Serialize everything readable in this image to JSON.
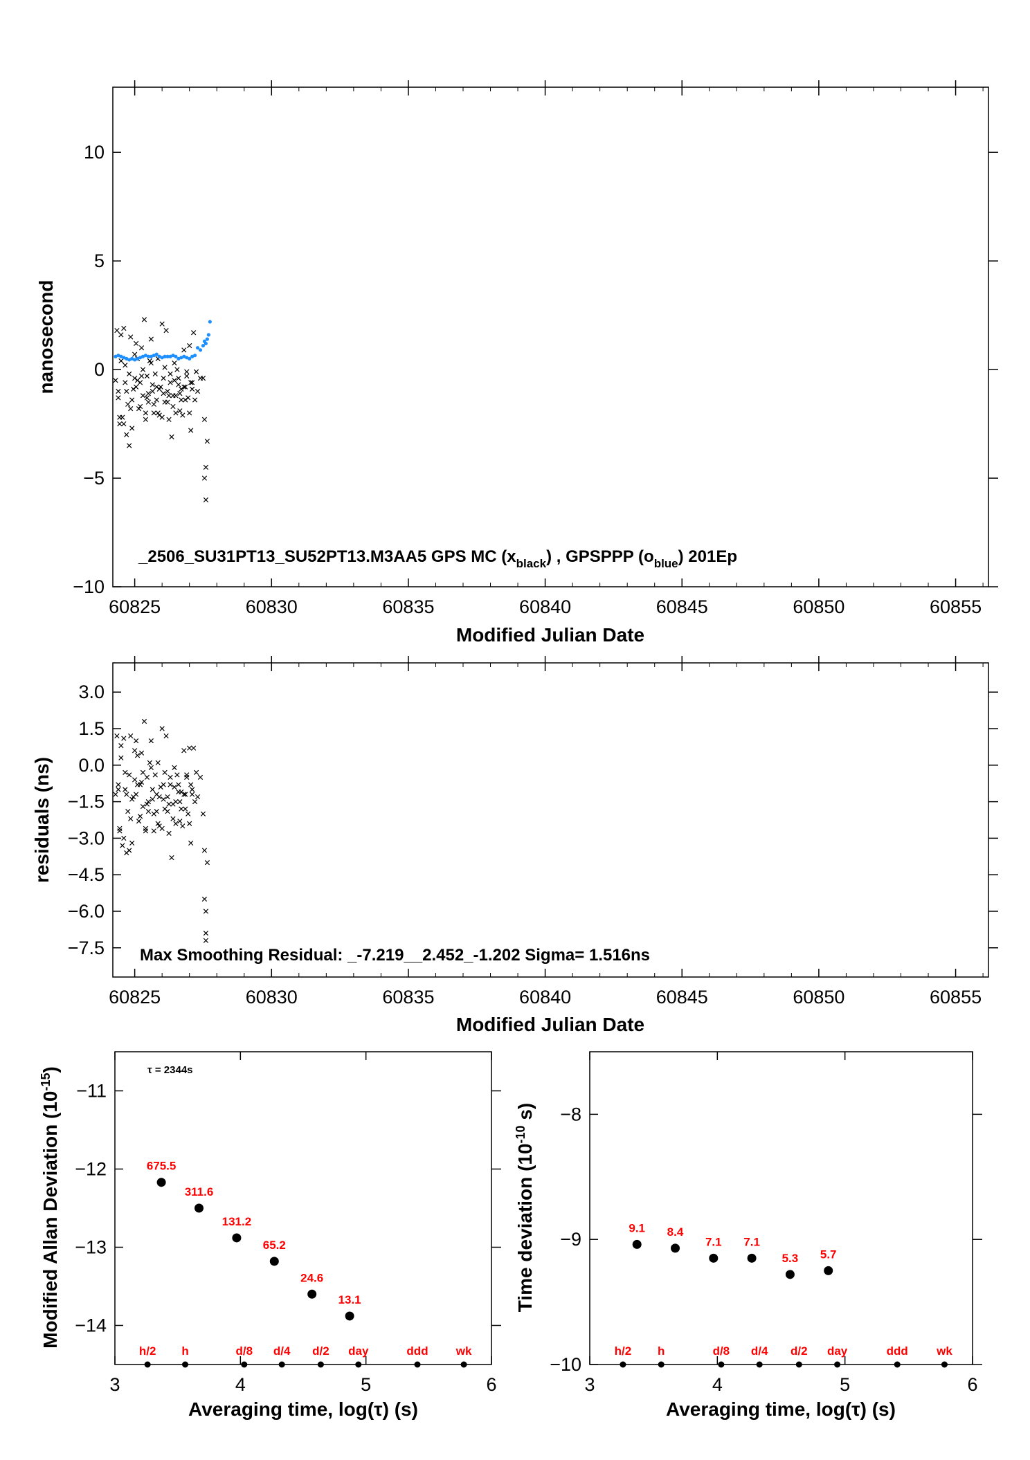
{
  "colors": {
    "black_series": "#000000",
    "blue_series": "#1e8fff",
    "red_labels": "#ff0000"
  },
  "chart_data": [
    {
      "type": "scatter",
      "id": "clock-offset",
      "xlabel": "Modified Julian Date",
      "ylabel": "nanosecond",
      "xlim": [
        60824.2,
        60856.2
      ],
      "ylim": [
        -10,
        13
      ],
      "xticks": [
        60825,
        60830,
        60835,
        60840,
        60845,
        60850,
        60855
      ],
      "yticks": [
        -10,
        -5,
        0,
        5,
        10
      ],
      "annotation": {
        "main": "_2506_SU31PT13_SU52PT13.M3AA5     GPS MC (x",
        "sub1": "black",
        "mid": ") ,  GPSPPP (o",
        "sub2": "blue",
        "end": ")  201Ep"
      },
      "series": [
        {
          "name": "GPS MC",
          "marker": "x",
          "color": "#000000",
          "x": [
            60824.3,
            60824.35,
            60824.4,
            60824.45,
            60824.5,
            60824.55,
            60824.6,
            60824.65,
            60824.7,
            60824.75,
            60824.8,
            60824.85,
            60824.9,
            60824.95,
            60825.0,
            60825.05,
            60825.1,
            60825.15,
            60825.2,
            60825.25,
            60825.3,
            60825.35,
            60825.4,
            60825.45,
            60825.5,
            60825.55,
            60825.6,
            60825.65,
            60825.7,
            60825.75,
            60825.8,
            60825.85,
            60825.9,
            60825.95,
            60826.0,
            60826.05,
            60826.1,
            60826.15,
            60826.2,
            60826.25,
            60826.3,
            60826.35,
            60826.4,
            60826.45,
            60826.5,
            60826.55,
            60826.6,
            60826.65,
            60826.7,
            60826.75,
            60826.8,
            60826.85,
            60826.9,
            60826.95,
            60827.0,
            60827.05,
            60827.1,
            60827.15,
            60827.2,
            60827.25,
            60827.3,
            60827.4,
            60827.5,
            60827.55,
            60827.55,
            60827.6,
            60827.6,
            60827.65,
            60824.4,
            60824.5,
            60824.6,
            60824.7,
            60824.8,
            60824.9,
            60825.0,
            60825.1,
            60825.2,
            60825.3,
            60825.4,
            60825.5,
            60825.6,
            60825.7,
            60825.8,
            60825.9,
            60826.0,
            60826.1,
            60826.2,
            60826.3,
            60826.4,
            60826.5,
            60826.6,
            60826.7,
            60826.8,
            60826.9,
            60827.0,
            60827.1,
            60824.45,
            60824.65,
            60824.85,
            60825.05,
            60825.25,
            60825.45,
            60825.65,
            60825.85,
            60826.05,
            60826.25,
            60826.45,
            60826.65,
            60826.85,
            60827.05
          ],
          "y": [
            -0.5,
            1.8,
            -1.0,
            -2.5,
            0.4,
            -2.2,
            1.9,
            0.2,
            -3.0,
            -1.6,
            -3.5,
            1.5,
            -1.4,
            -0.9,
            0.7,
            1.2,
            -0.5,
            -1.8,
            -0.6,
            1.0,
            -1.2,
            2.3,
            -2.0,
            -0.3,
            -1.1,
            0.4,
            1.4,
            -0.7,
            -2.0,
            -0.2,
            -1.4,
            0.5,
            -2.1,
            -0.8,
            2.1,
            -0.4,
            -1.5,
            1.8,
            -1.0,
            -2.3,
            -0.6,
            -3.1,
            -1.7,
            0.3,
            -1.2,
            0.0,
            -0.4,
            -1.9,
            -0.9,
            -2.1,
            0.9,
            -1.4,
            -0.3,
            -1.3,
            1.1,
            -0.6,
            -0.9,
            1.7,
            -1.4,
            -0.1,
            -1.0,
            -0.4,
            -0.4,
            -2.3,
            -5.0,
            -4.5,
            -6.0,
            -3.3,
            -1.3,
            1.6,
            -2.5,
            -1.0,
            -0.2,
            -2.7,
            -0.4,
            0.5,
            -1.7,
            0.0,
            -2.3,
            -1.5,
            0.3,
            -1.6,
            -0.8,
            -0.9,
            -2.2,
            0.1,
            -1.5,
            -0.2,
            -1.2,
            -2.0,
            -0.7,
            -1.4,
            -0.8,
            -0.1,
            -2.0,
            -0.6,
            -2.2,
            -0.6,
            -1.8,
            -0.8,
            -0.3,
            -1.3,
            -1.0,
            -2.0,
            -1.1,
            -1.2,
            -0.5,
            -1.1,
            -0.8,
            -2.8
          ]
        },
        {
          "name": "GPSPPP",
          "marker": "o",
          "color": "#1e8fff",
          "x": [
            60824.3,
            60824.4,
            60824.5,
            60824.6,
            60824.7,
            60824.8,
            60824.9,
            60825.0,
            60825.1,
            60825.2,
            60825.3,
            60825.4,
            60825.5,
            60825.6,
            60825.7,
            60825.8,
            60825.9,
            60826.0,
            60826.1,
            60826.2,
            60826.3,
            60826.4,
            60826.5,
            60826.6,
            60826.7,
            60826.8,
            60826.9,
            60827.0,
            60827.1,
            60827.2,
            60827.3,
            60827.4,
            60827.5,
            60827.55,
            60827.6,
            60827.65,
            60827.7,
            60827.75
          ],
          "y": [
            0.6,
            0.65,
            0.6,
            0.55,
            0.5,
            0.45,
            0.5,
            0.45,
            0.5,
            0.55,
            0.6,
            0.65,
            0.6,
            0.6,
            0.65,
            0.7,
            0.6,
            0.55,
            0.6,
            0.6,
            0.6,
            0.65,
            0.6,
            0.5,
            0.55,
            0.6,
            0.55,
            0.5,
            0.6,
            0.65,
            1.0,
            0.9,
            1.1,
            1.3,
            1.2,
            1.4,
            1.6,
            2.2
          ]
        }
      ]
    },
    {
      "type": "scatter",
      "id": "residuals",
      "xlabel": "Modified Julian Date",
      "ylabel": "residuals (ns)",
      "xlim": [
        60824.2,
        60856.2
      ],
      "ylim": [
        -8.7,
        4.2
      ],
      "xticks": [
        60825,
        60830,
        60835,
        60840,
        60845,
        60850,
        60855
      ],
      "yticks": [
        3.0,
        1.5,
        0.0,
        -1.5,
        -3.0,
        -4.5,
        -6.0,
        -7.5
      ],
      "ytick_labels": [
        "3.0",
        "1.5",
        "0.0",
        "−1.5",
        "−3.0",
        "−4.5",
        "−6.0",
        "−7.5"
      ],
      "annotation": "Max Smoothing Residual: _-7.219__2.452_-1.202  Sigma= 1.516ns",
      "series": [
        {
          "name": "",
          "marker": "x",
          "color": "#000000",
          "x": [
            60824.3,
            60824.35,
            60824.4,
            60824.45,
            60824.5,
            60824.55,
            60824.6,
            60824.65,
            60824.7,
            60824.75,
            60824.8,
            60824.85,
            60824.9,
            60824.95,
            60825.0,
            60825.05,
            60825.1,
            60825.15,
            60825.2,
            60825.25,
            60825.3,
            60825.35,
            60825.4,
            60825.45,
            60825.5,
            60825.55,
            60825.6,
            60825.65,
            60825.7,
            60825.75,
            60825.8,
            60825.85,
            60825.9,
            60825.95,
            60826.0,
            60826.05,
            60826.1,
            60826.15,
            60826.2,
            60826.25,
            60826.3,
            60826.35,
            60826.4,
            60826.45,
            60826.5,
            60826.55,
            60826.6,
            60826.65,
            60826.7,
            60826.75,
            60826.8,
            60826.85,
            60826.9,
            60826.95,
            60827.0,
            60827.05,
            60827.1,
            60827.15,
            60827.2,
            60827.25,
            60827.3,
            60827.4,
            60827.5,
            60827.55,
            60827.55,
            60827.6,
            60827.6,
            60827.6,
            60827.65,
            60824.4,
            60824.5,
            60824.6,
            60824.7,
            60824.8,
            60824.9,
            60825.0,
            60825.1,
            60825.2,
            60825.3,
            60825.4,
            60825.5,
            60825.6,
            60825.7,
            60825.8,
            60825.9,
            60826.0,
            60826.1,
            60826.2,
            60826.3,
            60826.4,
            60826.5,
            60826.6,
            60826.7,
            60826.8,
            60826.9,
            60827.0,
            60827.1,
            60824.45,
            60824.65,
            60824.85,
            60825.05,
            60825.25,
            60825.45,
            60825.65,
            60825.85,
            60826.05,
            60826.25,
            60826.45,
            60826.65,
            60826.85,
            60827.05
          ],
          "y": [
            -1.2,
            1.2,
            -0.8,
            -2.7,
            0.3,
            -3.3,
            1.1,
            -0.3,
            -3.6,
            -1.9,
            -3.5,
            1.2,
            -1.4,
            -1.3,
            0.6,
            1.0,
            -0.8,
            -2.3,
            -0.8,
            0.5,
            -1.7,
            1.8,
            -2.6,
            -0.5,
            -1.5,
            0.1,
            1.0,
            -1.0,
            -2.7,
            -0.4,
            -1.9,
            0.1,
            -2.5,
            -0.9,
            1.5,
            -0.8,
            -1.8,
            1.2,
            -1.3,
            -2.8,
            -0.8,
            -3.8,
            -2.2,
            -0.1,
            -1.5,
            -0.4,
            -0.8,
            -2.3,
            -1.1,
            -2.5,
            0.6,
            -1.8,
            -0.5,
            -2.0,
            0.7,
            -0.8,
            -1.2,
            0.7,
            -1.5,
            -0.3,
            -1.3,
            -0.5,
            -2.0,
            -3.5,
            -5.5,
            -6.0,
            -7.2,
            -6.9,
            -4.0,
            -1.0,
            0.8,
            -3.0,
            -1.2,
            -0.4,
            -3.2,
            -0.6,
            0.4,
            -2.1,
            -0.3,
            -2.7,
            -1.9,
            -0.1,
            -2.0,
            -1.2,
            -1.3,
            -2.6,
            -0.3,
            -1.9,
            -0.5,
            -1.6,
            -2.4,
            -1.1,
            -1.8,
            -1.2,
            -0.4,
            -2.4,
            -1.0,
            -2.6,
            -1.0,
            -2.2,
            -1.2,
            -0.7,
            -1.6,
            -1.4,
            -2.4,
            -1.4,
            -1.6,
            -0.9,
            -1.5,
            -1.2,
            -3.2
          ]
        }
      ]
    },
    {
      "type": "scatter",
      "id": "mdev",
      "xlabel": "Averaging time, log(τ) (s)",
      "ylabel": "Modified Allan Deviation (10",
      "ylabel_sup": "-15",
      "ylabel_end": ")",
      "xlim": [
        3,
        6
      ],
      "ylim": [
        -14.5,
        -10.5
      ],
      "xticks": [
        3,
        4,
        5,
        6
      ],
      "yticks": [
        -11,
        -12,
        -13,
        -14
      ],
      "ytick_labels": [
        "−11",
        "−12",
        "−13",
        "−14"
      ],
      "tau_note": "τ = 2344s",
      "points": [
        {
          "x": 3.37,
          "y": -12.17,
          "label": "675.5"
        },
        {
          "x": 3.67,
          "y": -12.5,
          "label": "311.6"
        },
        {
          "x": 3.97,
          "y": -12.88,
          "label": "131.2"
        },
        {
          "x": 4.27,
          "y": -13.18,
          "label": "65.2"
        },
        {
          "x": 4.57,
          "y": -13.6,
          "label": "24.6"
        },
        {
          "x": 4.87,
          "y": -13.88,
          "label": "13.1"
        }
      ],
      "markers": [
        {
          "x": 3.26,
          "label": "h/2"
        },
        {
          "x": 3.56,
          "label": "h"
        },
        {
          "x": 4.03,
          "label": "d/8"
        },
        {
          "x": 4.33,
          "label": "d/4"
        },
        {
          "x": 4.64,
          "label": "d/2"
        },
        {
          "x": 4.94,
          "label": "day"
        },
        {
          "x": 5.41,
          "label": "ddd"
        },
        {
          "x": 5.78,
          "label": "wk"
        }
      ]
    },
    {
      "type": "scatter",
      "id": "tdev",
      "xlabel": "Averaging time, log(τ) (s)",
      "ylabel": "Time deviation (10",
      "ylabel_sup": "-10",
      "ylabel_end": " s)",
      "xlim": [
        3,
        6
      ],
      "ylim": [
        -10,
        -7.5
      ],
      "xticks": [
        3,
        4,
        5,
        6
      ],
      "yticks": [
        -8,
        -9,
        -10
      ],
      "ytick_labels": [
        "−8",
        "−9",
        "−10"
      ],
      "points": [
        {
          "x": 3.37,
          "y": -9.04,
          "label": "9.1"
        },
        {
          "x": 3.67,
          "y": -9.07,
          "label": "8.4"
        },
        {
          "x": 3.97,
          "y": -9.15,
          "label": "7.1"
        },
        {
          "x": 4.27,
          "y": -9.15,
          "label": "7.1"
        },
        {
          "x": 4.57,
          "y": -9.28,
          "label": "5.3"
        },
        {
          "x": 4.87,
          "y": -9.25,
          "label": "5.7"
        }
      ],
      "markers": [
        {
          "x": 3.26,
          "label": "h/2"
        },
        {
          "x": 3.56,
          "label": "h"
        },
        {
          "x": 4.03,
          "label": "d/8"
        },
        {
          "x": 4.33,
          "label": "d/4"
        },
        {
          "x": 4.64,
          "label": "d/2"
        },
        {
          "x": 4.94,
          "label": "day"
        },
        {
          "x": 5.41,
          "label": "ddd"
        },
        {
          "x": 5.78,
          "label": "wk"
        }
      ]
    }
  ]
}
